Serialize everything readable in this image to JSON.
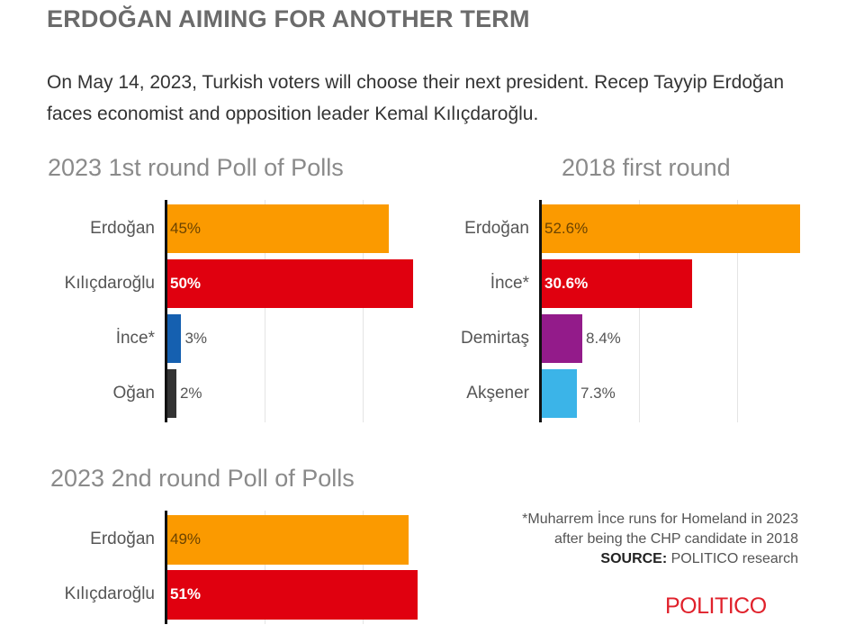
{
  "title": "ERDOĞAN AIMING FOR ANOTHER TERM",
  "subtitle": "On May 14, 2023, Turkish voters will choose their next president. Recep Tayyip Erdoğan faces economist and opposition leader Kemal Kılıçdaroğlu.",
  "chart_data": [
    {
      "type": "bar",
      "orientation": "horizontal",
      "title": "2023 1st round Poll of Polls",
      "categories": [
        "Erdoğan",
        "Kılıçdaroğlu",
        "İnce*",
        "Oğan"
      ],
      "values": [
        45,
        50,
        3,
        2
      ],
      "labels": [
        "45%",
        "50%",
        "3%",
        "2%"
      ],
      "colors": [
        "#fb9a00",
        "#e0000f",
        "#1560b0",
        "#333333"
      ],
      "xlim": [
        0,
        60
      ],
      "gridlines": [
        20,
        40
      ],
      "grid": true
    },
    {
      "type": "bar",
      "orientation": "horizontal",
      "title": "2018 first round",
      "categories": [
        "Erdoğan",
        "İnce*",
        "Demirtaş",
        "Akşener"
      ],
      "values": [
        52.6,
        30.6,
        8.4,
        7.3
      ],
      "labels": [
        "52.6%",
        "30.6%",
        "8.4%",
        "7.3%"
      ],
      "colors": [
        "#fb9a00",
        "#e0000f",
        "#931b8a",
        "#3bb4e8"
      ],
      "xlim": [
        0,
        60
      ],
      "gridlines": [
        20,
        40
      ],
      "grid": true
    },
    {
      "type": "bar",
      "orientation": "horizontal",
      "title": "2023 2nd round Poll of Polls",
      "categories": [
        "Erdoğan",
        "Kılıçdaroğlu"
      ],
      "values": [
        49,
        51
      ],
      "labels": [
        "49%",
        "51%"
      ],
      "colors": [
        "#fb9a00",
        "#e0000f"
      ],
      "xlim": [
        0,
        60
      ],
      "gridlines": [
        20,
        40
      ],
      "grid": true
    }
  ],
  "footnote": {
    "line1": "*Muharrem İnce runs for Homeland in 2023",
    "line2": "after being the CHP candidate in 2018",
    "source_label": "SOURCE:",
    "source_text": " POLITICO research"
  },
  "logo": "POLITICO"
}
